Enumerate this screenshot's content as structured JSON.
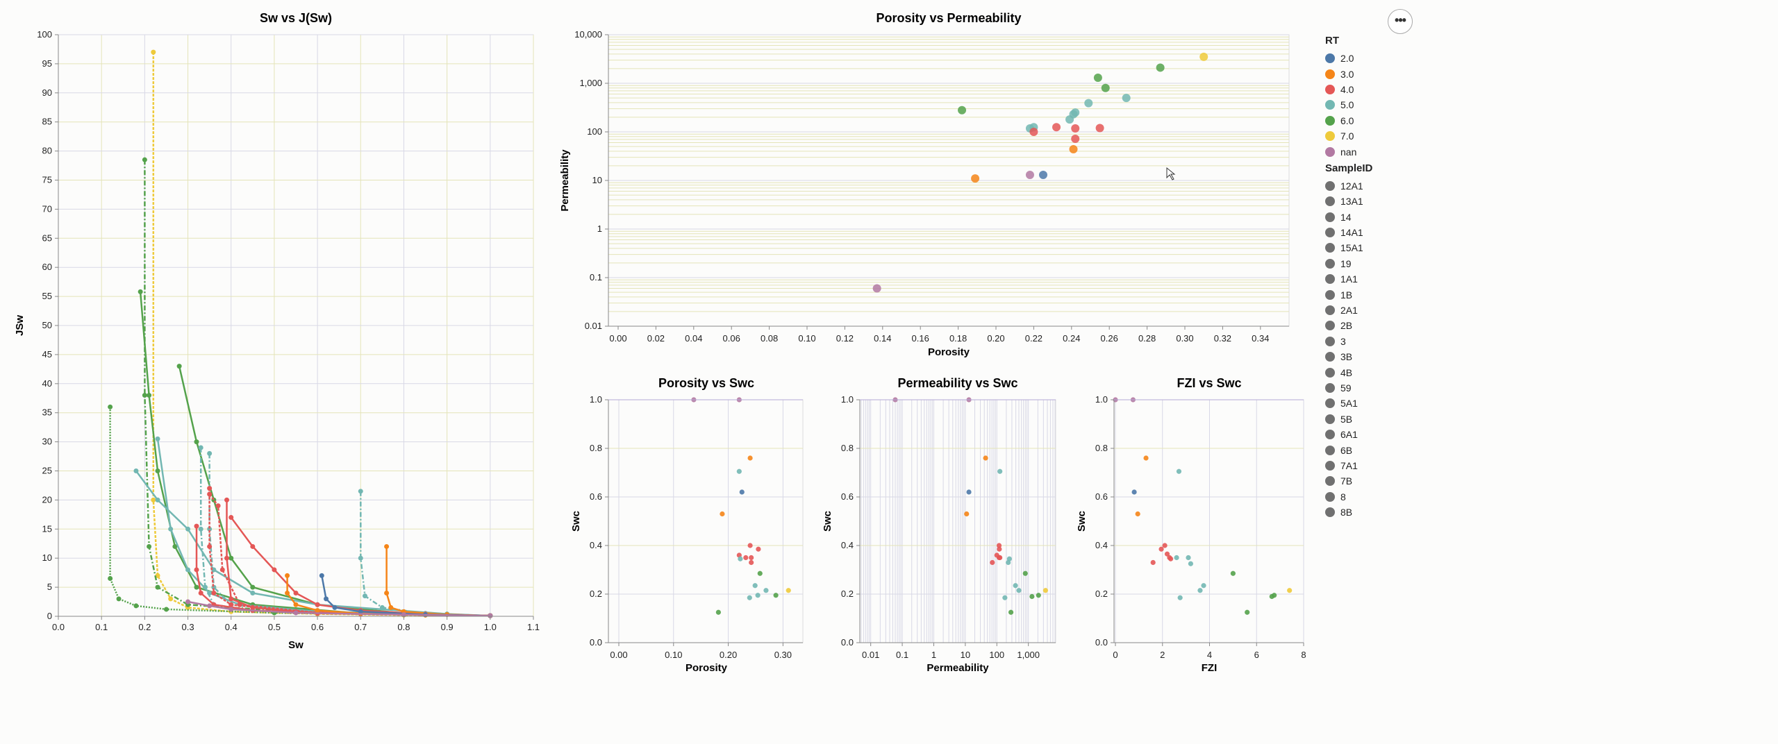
{
  "menu_button": "•••",
  "legend": {
    "rt_title": "RT",
    "rt_items": [
      {
        "label": "2.0",
        "color": "#4c78a8"
      },
      {
        "label": "3.0",
        "color": "#f58518"
      },
      {
        "label": "4.0",
        "color": "#e45756"
      },
      {
        "label": "5.0",
        "color": "#72b7b2"
      },
      {
        "label": "6.0",
        "color": "#54a24b"
      },
      {
        "label": "7.0",
        "color": "#eeca3b"
      },
      {
        "label": "nan",
        "color": "#b279a2"
      }
    ],
    "sample_title": "SampleID",
    "sample_items": [
      "12A1",
      "13A1",
      "14",
      "14A1",
      "15A1",
      "19",
      "1A1",
      "1B",
      "2A1",
      "2B",
      "3",
      "3B",
      "4B",
      "59",
      "5A1",
      "5B",
      "6A1",
      "6B",
      "7A1",
      "7B",
      "8",
      "8B"
    ],
    "sample_color": "#707070"
  },
  "chart_data": [
    {
      "id": "sw_j",
      "type": "line",
      "title": "Sw vs J(Sw)",
      "xlabel": "Sw",
      "ylabel": "JSw",
      "xlim": [
        0,
        1.1
      ],
      "ylim": [
        0,
        100
      ],
      "xticks": [
        "0.0",
        "0.1",
        "0.2",
        "0.3",
        "0.4",
        "0.5",
        "0.6",
        "0.7",
        "0.8",
        "0.9",
        "1.0",
        "1.1"
      ],
      "yticks": [
        "0",
        "5",
        "10",
        "15",
        "20",
        "25",
        "30",
        "35",
        "40",
        "45",
        "50",
        "55",
        "60",
        "65",
        "70",
        "75",
        "80",
        "85",
        "90",
        "95",
        "100"
      ],
      "series": [
        {
          "color": "#eeca3b",
          "dash": "4,2",
          "x": [
            0.22,
            0.22,
            0.23,
            0.26,
            0.3,
            0.4,
            0.6,
            0.8,
            1.0
          ],
          "y": [
            97,
            20,
            7,
            3,
            1.5,
            0.8,
            0.4,
            0.2,
            0.1
          ]
        },
        {
          "color": "#54a24b",
          "dash": "7,3,2,3",
          "x": [
            0.2,
            0.2,
            0.21,
            0.23,
            0.3,
            0.5,
            0.8,
            1.0
          ],
          "y": [
            78.5,
            38,
            12,
            5,
            2,
            1,
            0.4,
            0.1
          ]
        },
        {
          "color": "#54a24b",
          "dash": "",
          "x": [
            0.19,
            0.21,
            0.23,
            0.27,
            0.32,
            0.45,
            0.7,
            1.0
          ],
          "y": [
            55.8,
            38,
            25,
            12,
            5,
            2,
            0.5,
            0.1
          ]
        },
        {
          "color": "#54a24b",
          "dash": "2,2",
          "x": [
            0.12,
            0.12,
            0.14,
            0.18,
            0.25,
            0.5,
            0.8,
            1.0
          ],
          "y": [
            36,
            6.5,
            3,
            1.8,
            1.2,
            0.6,
            0.3,
            0.1
          ]
        },
        {
          "color": "#54a24b",
          "dash": "",
          "x": [
            0.28,
            0.32,
            0.36,
            0.4,
            0.45,
            0.6,
            0.8,
            1.0
          ],
          "y": [
            43,
            30,
            20,
            10,
            5,
            2,
            0.5,
            0.1
          ]
        },
        {
          "color": "#72b7b2",
          "dash": "",
          "x": [
            0.18,
            0.23,
            0.3,
            0.36,
            0.45,
            0.6,
            0.9,
            1.0
          ],
          "y": [
            25,
            20,
            15,
            8,
            4,
            2,
            0.4,
            0.1
          ]
        },
        {
          "color": "#72b7b2",
          "dash": "",
          "x": [
            0.23,
            0.26,
            0.3,
            0.35,
            0.42,
            0.6,
            1.0
          ],
          "y": [
            30.5,
            15,
            8,
            4,
            2,
            0.8,
            0.1
          ]
        },
        {
          "color": "#72b7b2",
          "dash": "7,3,2,3",
          "x": [
            0.33,
            0.33,
            0.34,
            0.36,
            0.45,
            0.7,
            1.0
          ],
          "y": [
            29,
            15,
            5,
            2,
            1,
            0.4,
            0.1
          ]
        },
        {
          "color": "#72b7b2",
          "dash": "7,3,2,3",
          "x": [
            0.35,
            0.35,
            0.36,
            0.4,
            0.55,
            1.0
          ],
          "y": [
            28,
            15,
            5,
            2,
            0.8,
            0.1
          ]
        },
        {
          "color": "#72b7b2",
          "dash": "7,3,2,3",
          "x": [
            0.7,
            0.7,
            0.71,
            0.75,
            0.85,
            1.0
          ],
          "y": [
            21.5,
            10,
            3.5,
            1.5,
            0.5,
            0.1
          ]
        },
        {
          "color": "#e45756",
          "dash": "",
          "x": [
            0.4,
            0.45,
            0.5,
            0.55,
            0.6,
            0.7,
            0.85,
            1.0
          ],
          "y": [
            17,
            12,
            8,
            4,
            2,
            1,
            0.4,
            0.1
          ]
        },
        {
          "color": "#e45756",
          "dash": "",
          "x": [
            0.32,
            0.32,
            0.33,
            0.36,
            0.45,
            0.7,
            1.0
          ],
          "y": [
            15.5,
            8,
            4,
            2,
            1,
            0.4,
            0.1
          ]
        },
        {
          "color": "#e45756",
          "dash": "4,2",
          "x": [
            0.35,
            0.35,
            0.36,
            0.4,
            0.55,
            0.8,
            1.0
          ],
          "y": [
            22,
            12,
            4,
            2,
            0.8,
            0.3,
            0.1
          ]
        },
        {
          "color": "#e45756",
          "dash": "",
          "x": [
            0.39,
            0.39,
            0.4,
            0.45,
            0.6,
            1.0
          ],
          "y": [
            20,
            10,
            3,
            1.5,
            0.5,
            0.1
          ]
        },
        {
          "color": "#e45756",
          "dash": "4,2",
          "x": [
            0.35,
            0.37,
            0.38,
            0.42,
            0.6,
            1.0
          ],
          "y": [
            21,
            19,
            8,
            2,
            0.6,
            0.1
          ]
        },
        {
          "color": "#f58518",
          "dash": "",
          "x": [
            0.53,
            0.53,
            0.55,
            0.6,
            0.7,
            0.85,
            1.0
          ],
          "y": [
            7,
            4,
            2,
            1,
            0.5,
            0.2,
            0.1
          ]
        },
        {
          "color": "#f58518",
          "dash": "",
          "x": [
            0.76,
            0.76,
            0.77,
            0.8,
            0.9,
            1.0
          ],
          "y": [
            12,
            4,
            1.5,
            0.8,
            0.3,
            0.1
          ]
        },
        {
          "color": "#4c78a8",
          "dash": "",
          "x": [
            0.61,
            0.62,
            0.64,
            0.7,
            0.85,
            1.0
          ],
          "y": [
            7,
            3,
            1.5,
            0.8,
            0.3,
            0.1
          ]
        },
        {
          "color": "#b279a2",
          "dash": "",
          "x": [
            0.3,
            0.35,
            0.4,
            0.55,
            0.8,
            1.0
          ],
          "y": [
            2.5,
            1.8,
            1.2,
            0.6,
            0.3,
            0.1
          ]
        }
      ]
    },
    {
      "id": "poro_perm",
      "type": "scatter",
      "title": "Porosity vs Permeability",
      "xlabel": "Porosity",
      "ylabel": "Permeability",
      "xlim": [
        0,
        0.35
      ],
      "ylim_log": [
        0.01,
        10000
      ],
      "xticks": [
        "0.00",
        "0.02",
        "0.04",
        "0.06",
        "0.08",
        "0.10",
        "0.12",
        "0.14",
        "0.16",
        "0.18",
        "0.20",
        "0.22",
        "0.24",
        "0.26",
        "0.28",
        "0.30",
        "0.32",
        "0.34"
      ],
      "yticks": [
        "0.01",
        "0.1",
        "1",
        "10",
        "100",
        "1,000",
        "10,000"
      ],
      "points": [
        {
          "x": 0.31,
          "y": 3500,
          "rt": "7.0"
        },
        {
          "x": 0.287,
          "y": 2100,
          "rt": "6.0"
        },
        {
          "x": 0.254,
          "y": 1300,
          "rt": "6.0"
        },
        {
          "x": 0.258,
          "y": 800,
          "rt": "6.0"
        },
        {
          "x": 0.182,
          "y": 280,
          "rt": "6.0"
        },
        {
          "x": 0.269,
          "y": 500,
          "rt": "5.0"
        },
        {
          "x": 0.249,
          "y": 390,
          "rt": "5.0"
        },
        {
          "x": 0.242,
          "y": 250,
          "rt": "5.0"
        },
        {
          "x": 0.241,
          "y": 230,
          "rt": "5.0"
        },
        {
          "x": 0.239,
          "y": 180,
          "rt": "5.0"
        },
        {
          "x": 0.218,
          "y": 118,
          "rt": "5.0"
        },
        {
          "x": 0.22,
          "y": 125,
          "rt": "5.0"
        },
        {
          "x": 0.22,
          "y": 100,
          "rt": "4.0"
        },
        {
          "x": 0.232,
          "y": 125,
          "rt": "4.0"
        },
        {
          "x": 0.242,
          "y": 118,
          "rt": "4.0"
        },
        {
          "x": 0.255,
          "y": 120,
          "rt": "4.0"
        },
        {
          "x": 0.242,
          "y": 72,
          "rt": "4.0"
        },
        {
          "x": 0.241,
          "y": 44,
          "rt": "3.0"
        },
        {
          "x": 0.189,
          "y": 11,
          "rt": "3.0"
        },
        {
          "x": 0.225,
          "y": 13,
          "rt": "2.0"
        },
        {
          "x": 0.218,
          "y": 13,
          "rt": "nan"
        },
        {
          "x": 0.137,
          "y": 0.06,
          "rt": "nan"
        }
      ]
    },
    {
      "id": "poro_swc",
      "type": "scatter",
      "title": "Porosity vs Swc",
      "xlabel": "Porosity",
      "ylabel": "Swc",
      "xlim": [
        0,
        0.33
      ],
      "ylim": [
        0,
        1
      ],
      "xticks": [
        "0.00",
        "0.10",
        "0.20",
        "0.30"
      ],
      "yticks": [
        "0.0",
        "0.2",
        "0.4",
        "0.6",
        "0.8",
        "1.0"
      ],
      "points": [
        {
          "x": 0.137,
          "y": 1.0,
          "rt": "nan"
        },
        {
          "x": 0.22,
          "y": 1.0,
          "rt": "nan"
        },
        {
          "x": 0.24,
          "y": 0.76,
          "rt": "3.0"
        },
        {
          "x": 0.189,
          "y": 0.53,
          "rt": "3.0"
        },
        {
          "x": 0.22,
          "y": 0.705,
          "rt": "5.0"
        },
        {
          "x": 0.225,
          "y": 0.62,
          "rt": "2.0"
        },
        {
          "x": 0.24,
          "y": 0.4,
          "rt": "4.0"
        },
        {
          "x": 0.255,
          "y": 0.385,
          "rt": "4.0"
        },
        {
          "x": 0.22,
          "y": 0.36,
          "rt": "4.0"
        },
        {
          "x": 0.232,
          "y": 0.35,
          "rt": "4.0"
        },
        {
          "x": 0.242,
          "y": 0.35,
          "rt": "4.0"
        },
        {
          "x": 0.242,
          "y": 0.33,
          "rt": "4.0"
        },
        {
          "x": 0.222,
          "y": 0.345,
          "rt": "5.0"
        },
        {
          "x": 0.258,
          "y": 0.285,
          "rt": "6.0"
        },
        {
          "x": 0.249,
          "y": 0.235,
          "rt": "5.0"
        },
        {
          "x": 0.269,
          "y": 0.215,
          "rt": "5.0"
        },
        {
          "x": 0.239,
          "y": 0.185,
          "rt": "5.0"
        },
        {
          "x": 0.254,
          "y": 0.195,
          "rt": "5.0"
        },
        {
          "x": 0.287,
          "y": 0.195,
          "rt": "6.0"
        },
        {
          "x": 0.31,
          "y": 0.215,
          "rt": "7.0"
        },
        {
          "x": 0.182,
          "y": 0.125,
          "rt": "6.0"
        }
      ]
    },
    {
      "id": "perm_swc",
      "type": "scatter",
      "title": "Permeability vs Swc",
      "xlabel": "Permeability",
      "ylabel": "Swc",
      "xlim_log": [
        0.005,
        6000
      ],
      "ylim": [
        0,
        1
      ],
      "xticks": [
        "0.01",
        "0.1",
        "1",
        "10",
        "100",
        "1,000"
      ],
      "yticks": [
        "0.0",
        "0.2",
        "0.4",
        "0.6",
        "0.8",
        "1.0"
      ],
      "points": [
        {
          "x": 0.06,
          "y": 1.0,
          "rt": "nan"
        },
        {
          "x": 13,
          "y": 1.0,
          "rt": "nan"
        },
        {
          "x": 44,
          "y": 0.76,
          "rt": "3.0"
        },
        {
          "x": 11,
          "y": 0.53,
          "rt": "3.0"
        },
        {
          "x": 125,
          "y": 0.705,
          "rt": "5.0"
        },
        {
          "x": 13,
          "y": 0.62,
          "rt": "2.0"
        },
        {
          "x": 118,
          "y": 0.4,
          "rt": "4.0"
        },
        {
          "x": 120,
          "y": 0.385,
          "rt": "4.0"
        },
        {
          "x": 100,
          "y": 0.36,
          "rt": "4.0"
        },
        {
          "x": 125,
          "y": 0.35,
          "rt": "4.0"
        },
        {
          "x": 118,
          "y": 0.35,
          "rt": "4.0"
        },
        {
          "x": 72,
          "y": 0.33,
          "rt": "4.0"
        },
        {
          "x": 250,
          "y": 0.345,
          "rt": "5.0"
        },
        {
          "x": 230,
          "y": 0.33,
          "rt": "5.0"
        },
        {
          "x": 800,
          "y": 0.285,
          "rt": "6.0"
        },
        {
          "x": 390,
          "y": 0.235,
          "rt": "5.0"
        },
        {
          "x": 500,
          "y": 0.215,
          "rt": "5.0"
        },
        {
          "x": 180,
          "y": 0.185,
          "rt": "5.0"
        },
        {
          "x": 1300,
          "y": 0.19,
          "rt": "6.0"
        },
        {
          "x": 2100,
          "y": 0.195,
          "rt": "6.0"
        },
        {
          "x": 3500,
          "y": 0.215,
          "rt": "7.0"
        },
        {
          "x": 280,
          "y": 0.125,
          "rt": "6.0"
        }
      ]
    },
    {
      "id": "fzi_swc",
      "type": "scatter",
      "title": "FZI vs Swc",
      "xlabel": "FZI",
      "ylabel": "Swc",
      "xlim": [
        0,
        8
      ],
      "ylim": [
        0,
        1
      ],
      "xticks": [
        "0",
        "2",
        "4",
        "6",
        "8"
      ],
      "yticks": [
        "0.0",
        "0.2",
        "0.4",
        "0.6",
        "0.8",
        "1.0"
      ],
      "points": [
        {
          "x": 0.0,
          "y": 1.0,
          "rt": "nan"
        },
        {
          "x": 0.75,
          "y": 1.0,
          "rt": "nan"
        },
        {
          "x": 1.3,
          "y": 0.76,
          "rt": "3.0"
        },
        {
          "x": 0.95,
          "y": 0.53,
          "rt": "3.0"
        },
        {
          "x": 2.7,
          "y": 0.705,
          "rt": "5.0"
        },
        {
          "x": 0.8,
          "y": 0.62,
          "rt": "2.0"
        },
        {
          "x": 2.1,
          "y": 0.4,
          "rt": "4.0"
        },
        {
          "x": 1.95,
          "y": 0.385,
          "rt": "4.0"
        },
        {
          "x": 2.2,
          "y": 0.365,
          "rt": "4.0"
        },
        {
          "x": 2.3,
          "y": 0.35,
          "rt": "4.0"
        },
        {
          "x": 2.35,
          "y": 0.345,
          "rt": "4.0"
        },
        {
          "x": 1.6,
          "y": 0.33,
          "rt": "4.0"
        },
        {
          "x": 2.6,
          "y": 0.35,
          "rt": "5.0"
        },
        {
          "x": 3.1,
          "y": 0.35,
          "rt": "5.0"
        },
        {
          "x": 3.2,
          "y": 0.325,
          "rt": "5.0"
        },
        {
          "x": 5.0,
          "y": 0.285,
          "rt": "6.0"
        },
        {
          "x": 3.75,
          "y": 0.235,
          "rt": "5.0"
        },
        {
          "x": 3.6,
          "y": 0.215,
          "rt": "5.0"
        },
        {
          "x": 2.75,
          "y": 0.185,
          "rt": "5.0"
        },
        {
          "x": 6.65,
          "y": 0.19,
          "rt": "6.0"
        },
        {
          "x": 6.75,
          "y": 0.195,
          "rt": "6.0"
        },
        {
          "x": 7.4,
          "y": 0.215,
          "rt": "7.0"
        },
        {
          "x": 5.6,
          "y": 0.125,
          "rt": "6.0"
        }
      ]
    }
  ]
}
